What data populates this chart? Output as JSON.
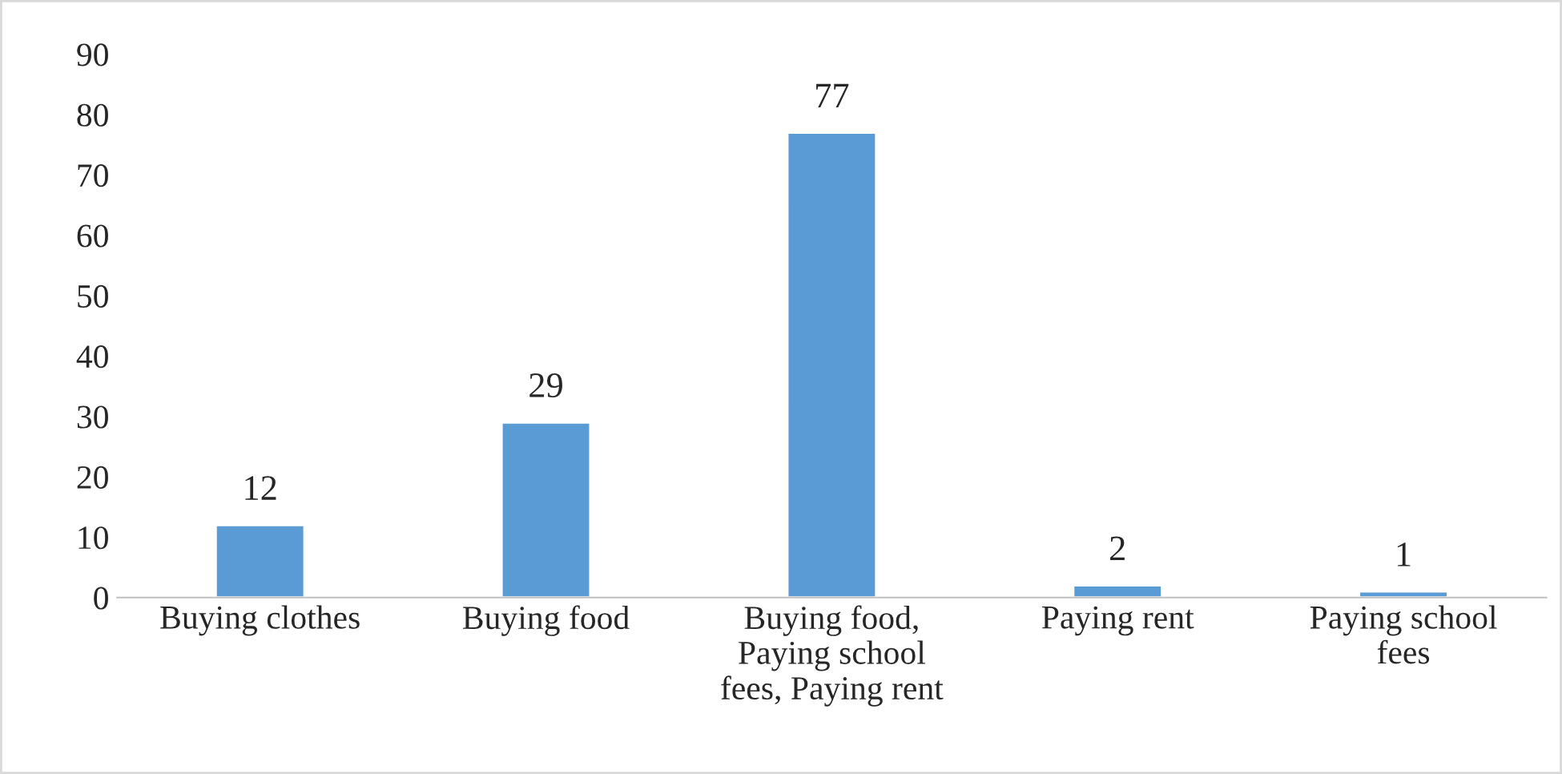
{
  "chart_data": {
    "type": "bar",
    "categories": [
      "Buying clothes",
      "Buying food",
      "Buying food,\nPaying school\nfees, Paying rent",
      "Paying rent",
      "Paying school\nfees"
    ],
    "values": [
      12,
      29,
      77,
      2,
      1
    ],
    "color": "#5b9bd5",
    "ylim": [
      0,
      90
    ],
    "yticks": [
      0,
      10,
      20,
      30,
      40,
      50,
      60,
      70,
      80,
      90
    ],
    "data_labels": true,
    "grid": false
  }
}
